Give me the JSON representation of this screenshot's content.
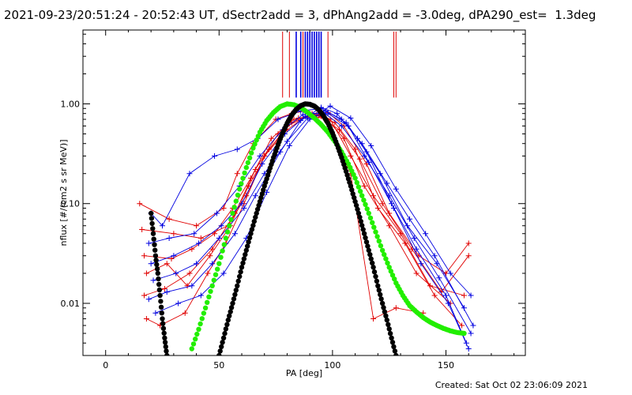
{
  "header": {
    "title": "2021-09-23/20:51:24 - 20:52:43 UT, dSectr2add = 3, dPhAng2add = -3.0deg, dPA290_est=  1.3deg"
  },
  "footer": {
    "created": "Created: Sat Oct 02 23:06:09 2021"
  },
  "colors": {
    "red": "#e00000",
    "blue": "#0000e0",
    "green": "#22ee00",
    "black": "#000000"
  },
  "chart_data": {
    "type": "line",
    "title": "2021-09-23/20:51:24 - 20:52:43 UT, dSectr2add = 3, dPhAng2add = -3.0deg, dPA290_est=  1.3deg",
    "xlabel": "PA [deg]",
    "ylabel": "nflux [#/(cm2 s sr MeV)]",
    "xlim": [
      -10,
      185
    ],
    "ylim": [
      0.003,
      5.5
    ],
    "yscale": "log",
    "x_ticks": [
      0,
      50,
      100,
      150
    ],
    "x_tick_labels": [
      "0",
      "50",
      "100",
      "150"
    ],
    "y_ticks": [
      0.01,
      0.1,
      1.0
    ],
    "y_tick_labels": [
      "0.01",
      "0.10",
      "1.00"
    ],
    "vertical_markers": {
      "red": [
        78,
        81,
        87,
        98,
        127,
        128
      ],
      "blue": [
        84,
        86,
        88,
        89,
        90,
        91,
        92,
        93,
        94,
        95
      ]
    },
    "series": [
      {
        "color": "red",
        "style": "solid-plus",
        "x": [
          15,
          28,
          40,
          52,
          58,
          65,
          75,
          82,
          88,
          95,
          100,
          108,
          118,
          128,
          140
        ],
        "y": [
          0.1,
          0.07,
          0.06,
          0.09,
          0.2,
          0.4,
          0.7,
          0.8,
          0.85,
          0.75,
          0.5,
          0.2,
          0.007,
          0.009,
          0.008
        ]
      },
      {
        "color": "red",
        "style": "solid-plus",
        "x": [
          16,
          30,
          42,
          54,
          62,
          70,
          80,
          90,
          98,
          105,
          115,
          125,
          138,
          150,
          160
        ],
        "y": [
          0.055,
          0.05,
          0.045,
          0.06,
          0.12,
          0.3,
          0.55,
          0.8,
          0.82,
          0.6,
          0.25,
          0.08,
          0.03,
          0.02,
          0.04
        ]
      },
      {
        "color": "red",
        "style": "solid-plus",
        "x": [
          17,
          29,
          38,
          48,
          56,
          64,
          73,
          83,
          93,
          101,
          110,
          120,
          132,
          145,
          157
        ],
        "y": [
          0.03,
          0.028,
          0.035,
          0.05,
          0.09,
          0.18,
          0.45,
          0.7,
          0.78,
          0.65,
          0.35,
          0.09,
          0.04,
          0.012,
          0.006
        ]
      },
      {
        "color": "red",
        "style": "solid-plus",
        "x": [
          18,
          27,
          36,
          46,
          55,
          63,
          72,
          82,
          91,
          99,
          108,
          118,
          130,
          143,
          158
        ],
        "y": [
          0.02,
          0.025,
          0.015,
          0.03,
          0.06,
          0.15,
          0.35,
          0.65,
          0.8,
          0.7,
          0.3,
          0.12,
          0.05,
          0.015,
          0.012
        ]
      },
      {
        "color": "red",
        "style": "solid-plus",
        "x": [
          18,
          24,
          35,
          45,
          53,
          61,
          70,
          80,
          89,
          97,
          105,
          114,
          125,
          137,
          152
        ],
        "y": [
          0.007,
          0.006,
          0.008,
          0.02,
          0.04,
          0.1,
          0.3,
          0.6,
          0.75,
          0.72,
          0.45,
          0.15,
          0.06,
          0.02,
          0.01
        ]
      },
      {
        "color": "red",
        "style": "solid-plus",
        "x": [
          17,
          26,
          37,
          47,
          57,
          66,
          76,
          85,
          94,
          103,
          112,
          122,
          135,
          148,
          160
        ],
        "y": [
          0.012,
          0.014,
          0.02,
          0.035,
          0.08,
          0.22,
          0.5,
          0.72,
          0.76,
          0.55,
          0.28,
          0.1,
          0.035,
          0.013,
          0.03
        ]
      },
      {
        "color": "blue",
        "style": "solid-plus",
        "x": [
          20,
          25,
          37,
          48,
          58,
          67,
          76,
          86,
          95,
          104,
          113,
          124,
          134,
          145,
          162
        ],
        "y": [
          0.08,
          0.06,
          0.2,
          0.3,
          0.35,
          0.45,
          0.7,
          0.85,
          0.9,
          0.7,
          0.4,
          0.16,
          0.07,
          0.03,
          0.006
        ]
      },
      {
        "color": "blue",
        "style": "solid-plus",
        "x": [
          19,
          28,
          39,
          49,
          59,
          68,
          78,
          87,
          96,
          104,
          114,
          125,
          136,
          147,
          161
        ],
        "y": [
          0.04,
          0.045,
          0.05,
          0.08,
          0.15,
          0.3,
          0.55,
          0.78,
          0.82,
          0.6,
          0.3,
          0.12,
          0.045,
          0.018,
          0.005
        ]
      },
      {
        "color": "blue",
        "style": "solid-plus",
        "x": [
          20,
          30,
          41,
          51,
          60,
          69,
          79,
          88,
          97,
          106,
          115,
          126,
          137,
          150,
          159
        ],
        "y": [
          0.025,
          0.03,
          0.04,
          0.06,
          0.1,
          0.25,
          0.5,
          0.75,
          0.85,
          0.65,
          0.33,
          0.1,
          0.035,
          0.012,
          0.004
        ]
      },
      {
        "color": "blue",
        "style": "solid-plus",
        "x": [
          21,
          31,
          40,
          50,
          61,
          70,
          80,
          89,
          98,
          107,
          116,
          127,
          139,
          151,
          160
        ],
        "y": [
          0.017,
          0.02,
          0.025,
          0.045,
          0.09,
          0.2,
          0.42,
          0.72,
          0.8,
          0.6,
          0.26,
          0.09,
          0.025,
          0.01,
          0.0035
        ]
      },
      {
        "color": "blue",
        "style": "solid-plus",
        "x": [
          19,
          27,
          38,
          47,
          57,
          66,
          77,
          86,
          95,
          102,
          111,
          121,
          133,
          146,
          158
        ],
        "y": [
          0.011,
          0.013,
          0.015,
          0.025,
          0.05,
          0.12,
          0.33,
          0.68,
          0.92,
          0.8,
          0.45,
          0.2,
          0.06,
          0.025,
          0.009
        ]
      },
      {
        "color": "blue",
        "style": "solid-plus",
        "x": [
          22,
          32,
          42,
          52,
          62,
          71,
          81,
          90,
          99,
          108,
          117,
          128,
          141,
          152,
          161
        ],
        "y": [
          0.008,
          0.01,
          0.012,
          0.02,
          0.045,
          0.13,
          0.38,
          0.7,
          0.95,
          0.72,
          0.38,
          0.14,
          0.05,
          0.02,
          0.012
        ]
      },
      {
        "color": "green",
        "style": "dots",
        "x": [
          38,
          41,
          44,
          47,
          50,
          53,
          56,
          59,
          62,
          65,
          68,
          71,
          74,
          77,
          80,
          83,
          86,
          89,
          92,
          95,
          98,
          101,
          104,
          107,
          110,
          113,
          116,
          119,
          122,
          125,
          128,
          131,
          134,
          137,
          140,
          143,
          146,
          149,
          152,
          155,
          158
        ],
        "y": [
          0.0035,
          0.0055,
          0.009,
          0.015,
          0.025,
          0.045,
          0.08,
          0.14,
          0.23,
          0.36,
          0.52,
          0.68,
          0.82,
          0.94,
          1.0,
          0.98,
          0.92,
          0.82,
          0.72,
          0.62,
          0.52,
          0.42,
          0.33,
          0.25,
          0.18,
          0.12,
          0.08,
          0.052,
          0.034,
          0.023,
          0.016,
          0.012,
          0.0095,
          0.0082,
          0.0072,
          0.0065,
          0.006,
          0.0056,
          0.0053,
          0.0051,
          0.005
        ]
      },
      {
        "color": "black",
        "style": "dots",
        "id": "narrow",
        "x": [
          50,
          52,
          54,
          56,
          58,
          60,
          62,
          64,
          66,
          68,
          70,
          72,
          74,
          76,
          78,
          80,
          82,
          84,
          86,
          88,
          90,
          92,
          94,
          96,
          98,
          100,
          102,
          104,
          106,
          108,
          110,
          112,
          114,
          116,
          118,
          120,
          122,
          124,
          126,
          128,
          130
        ],
        "y": [
          0.003,
          0.0045,
          0.0068,
          0.01,
          0.015,
          0.023,
          0.034,
          0.05,
          0.073,
          0.105,
          0.15,
          0.21,
          0.29,
          0.39,
          0.51,
          0.64,
          0.77,
          0.88,
          0.96,
          1.0,
          0.99,
          0.95,
          0.87,
          0.76,
          0.64,
          0.51,
          0.39,
          0.29,
          0.21,
          0.15,
          0.105,
          0.073,
          0.05,
          0.034,
          0.023,
          0.015,
          0.01,
          0.0068,
          0.0045,
          0.003,
          0.0025
        ]
      },
      {
        "color": "black",
        "style": "dots",
        "id": "left-wing",
        "x": [
          20,
          21,
          22,
          23,
          24,
          25,
          26,
          27
        ],
        "y": [
          0.08,
          0.05,
          0.03,
          0.02,
          0.012,
          0.007,
          0.0045,
          0.003
        ]
      }
    ]
  }
}
